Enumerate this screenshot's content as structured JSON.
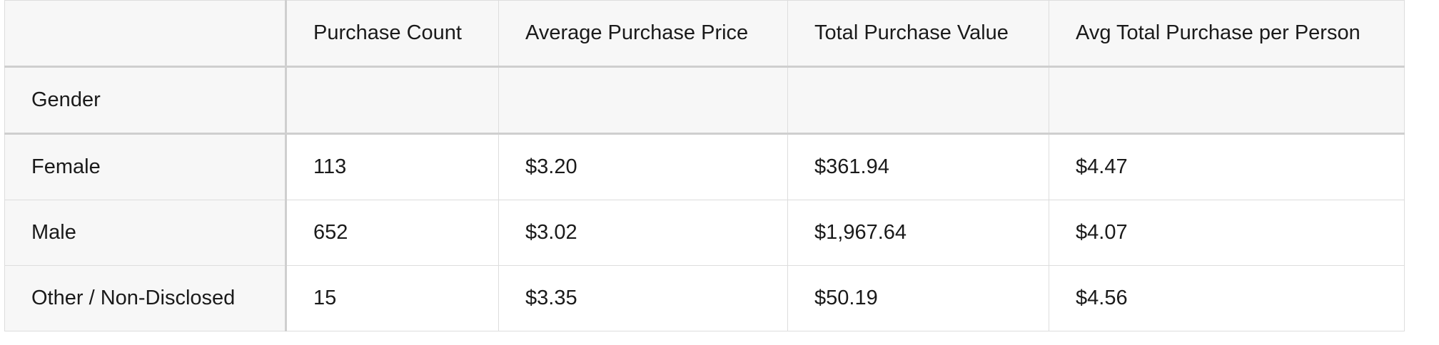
{
  "table": {
    "columns": [
      "Purchase Count",
      "Average Purchase Price",
      "Total Purchase Value",
      "Avg Total Purchase per Person"
    ],
    "index_name": "Gender",
    "rows": [
      {
        "label": "Female",
        "values": [
          "113",
          "$3.20",
          "$361.94",
          "$4.47"
        ]
      },
      {
        "label": "Male",
        "values": [
          "652",
          "$3.02",
          "$1,967.64",
          "$4.07"
        ]
      },
      {
        "label": "Other / Non-Disclosed",
        "values": [
          "15",
          "$3.35",
          "$50.19",
          "$4.56"
        ]
      }
    ]
  }
}
